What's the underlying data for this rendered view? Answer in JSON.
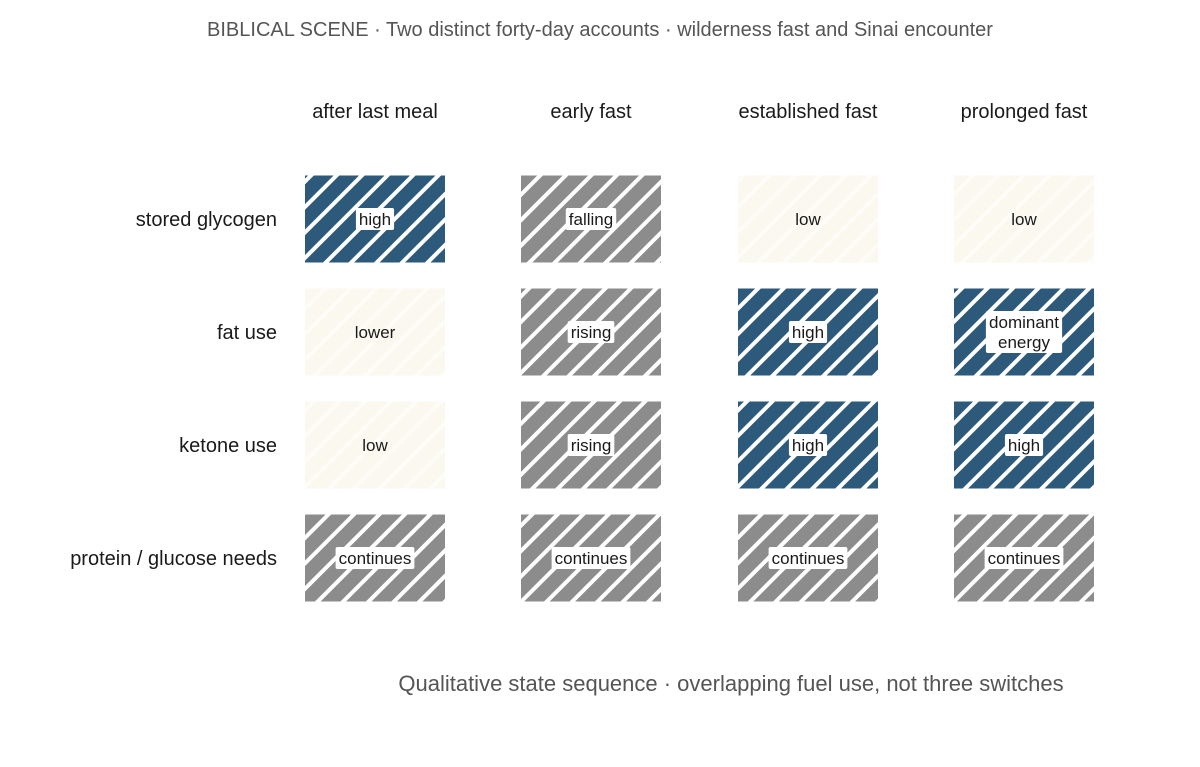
{
  "title": "BIBLICAL SCENE · Two distinct forty-day accounts · wilderness fast and Sinai encounter",
  "caption": "Qualitative state sequence · overlapping fuel use, not three switches",
  "colors": {
    "high": "#2d5a7b",
    "mid": "#8c8c8c",
    "low": "#faf8ef",
    "label_box": "#ffffff"
  },
  "chart_data": {
    "type": "heatmap",
    "columns": [
      "after last meal",
      "early fast",
      "established fast",
      "prolonged fast"
    ],
    "rows": [
      "stored glycogen",
      "fat use",
      "ketone use",
      "protein / glucose needs"
    ],
    "cells": [
      [
        {
          "level": "high",
          "label": "high"
        },
        {
          "level": "mid",
          "label": "falling"
        },
        {
          "level": "low",
          "label": "low"
        },
        {
          "level": "low",
          "label": "low"
        }
      ],
      [
        {
          "level": "low",
          "label": "lower"
        },
        {
          "level": "mid",
          "label": "rising"
        },
        {
          "level": "high",
          "label": "high"
        },
        {
          "level": "high",
          "label": "dominant energy"
        }
      ],
      [
        {
          "level": "low",
          "label": "low"
        },
        {
          "level": "mid",
          "label": "rising"
        },
        {
          "level": "high",
          "label": "high"
        },
        {
          "level": "high",
          "label": "high"
        }
      ],
      [
        {
          "level": "mid",
          "label": "continues"
        },
        {
          "level": "mid",
          "label": "continues"
        },
        {
          "level": "mid",
          "label": "continues"
        },
        {
          "level": "mid",
          "label": "continues"
        }
      ]
    ]
  }
}
